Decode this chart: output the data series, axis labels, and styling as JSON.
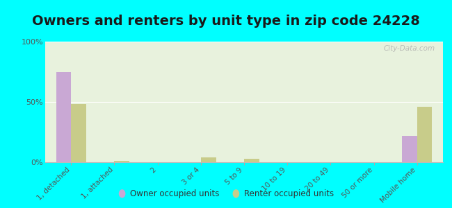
{
  "title": "Owners and renters by unit type in zip code 24228",
  "categories": [
    "1, detached",
    "1, attached",
    "2",
    "3 or 4",
    "5 to 9",
    "10 to 19",
    "20 to 49",
    "50 or more",
    "Mobile home"
  ],
  "owner_values": [
    75,
    0,
    0,
    0,
    0,
    0,
    0,
    0,
    22
  ],
  "renter_values": [
    48,
    1,
    0,
    4,
    3,
    0,
    0,
    0,
    46
  ],
  "owner_color": "#c9a8d4",
  "renter_color": "#c8cc8a",
  "bg_color": "#00ffff",
  "plot_bg_color": "#e8f2dd",
  "ylim": [
    0,
    100
  ],
  "yticks": [
    0,
    50,
    100
  ],
  "ytick_labels": [
    "0%",
    "50%",
    "100%"
  ],
  "legend_owner": "Owner occupied units",
  "legend_renter": "Renter occupied units",
  "bar_width": 0.35,
  "title_fontsize": 14,
  "title_color": "#1a1a1a"
}
